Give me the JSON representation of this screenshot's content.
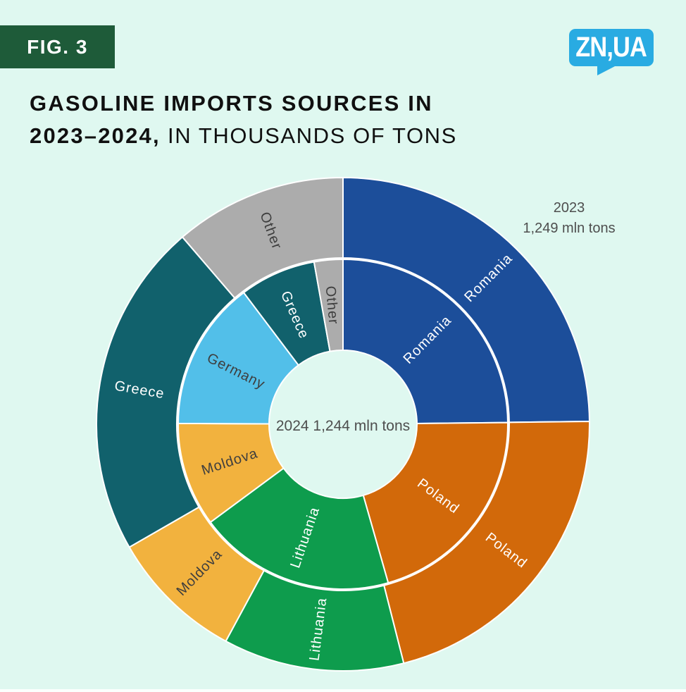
{
  "badge": {
    "label": "FIG. 3",
    "bg": "#1E5B39",
    "text_color": "#FFFFFF"
  },
  "logo": {
    "label": "ZN,UA",
    "bg": "#29ABE2",
    "text_color": "#FFFFFF"
  },
  "title": {
    "line1_bold": "GASOLINE IMPORTS SOURCES IN",
    "line2_bold": "2023–2024,",
    "line2_regular": " IN THOUSANDS OF TONS",
    "color": "#101010"
  },
  "page": {
    "background": "#DFF8F0"
  },
  "chart_data": {
    "type": "pie",
    "subtype": "nested-donut",
    "title": "GASOLINE IMPORTS SOURCES IN 2023–2024, IN THOUSANDS OF TONS",
    "legend_position": "none",
    "annotations": {
      "outer_ring_year": "2023",
      "outer_ring_total": "1,249 mln tons",
      "center_label": "2024 1,244 mln tons",
      "annotation_color": "#4E4E4E"
    },
    "rings": [
      {
        "name": "2023",
        "position": "outer",
        "total": 1249,
        "segments": [
          {
            "label": "Romania",
            "value": 310,
            "color": "#1C4E9A",
            "label_color": "#FFFFFF"
          },
          {
            "label": "Poland",
            "value": 265,
            "color": "#D2690A",
            "label_color": "#FFFFFF"
          },
          {
            "label": "Lithuania",
            "value": 148,
            "color": "#0E9C4D",
            "label_color": "#FFFFFF"
          },
          {
            "label": "Moldova",
            "value": 110,
            "color": "#F2B23E",
            "label_color": "#3E3E3E"
          },
          {
            "label": "Greece",
            "value": 275,
            "color": "#11616C",
            "label_color": "#FFFFFF"
          },
          {
            "label": "Other",
            "value": 141,
            "color": "#ACACAC",
            "label_color": "#3E3E3E"
          }
        ]
      },
      {
        "name": "2024",
        "position": "inner",
        "total": 1244,
        "segments": [
          {
            "label": "Romania",
            "value": 309,
            "color": "#1C4E9A",
            "label_color": "#FFFFFF"
          },
          {
            "label": "Poland",
            "value": 258,
            "color": "#D2690A",
            "label_color": "#FFFFFF"
          },
          {
            "label": "Lithuania",
            "value": 240,
            "color": "#0E9C4D",
            "label_color": "#FFFFFF"
          },
          {
            "label": "Moldova",
            "value": 127,
            "color": "#F2B23E",
            "label_color": "#3E3E3E"
          },
          {
            "label": "Germany",
            "value": 182,
            "color": "#52BFE9",
            "label_color": "#3E3E3E"
          },
          {
            "label": "Greece",
            "value": 93,
            "color": "#11616C",
            "label_color": "#FFFFFF"
          },
          {
            "label": "Other",
            "value": 35,
            "color": "#ACACAC",
            "label_color": "#3E3E3E"
          }
        ]
      }
    ]
  }
}
